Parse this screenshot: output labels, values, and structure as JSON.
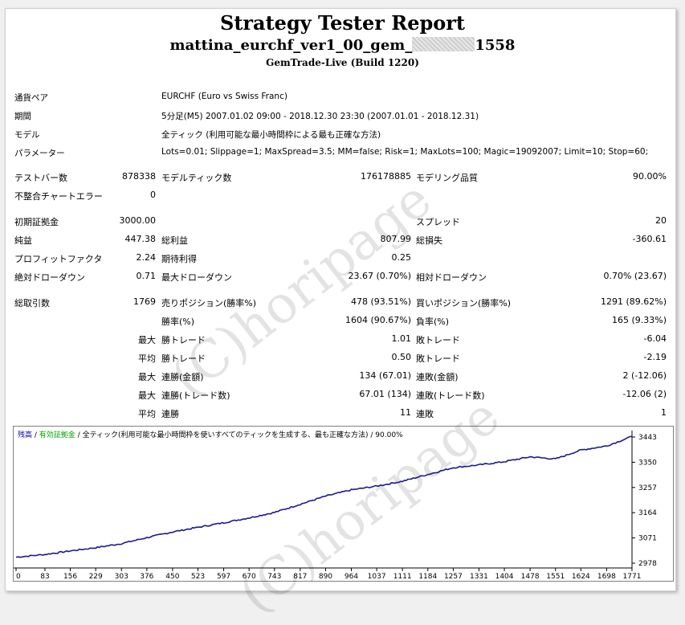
{
  "report": {
    "title": "Strategy Tester Report",
    "ea_prefix": "mattina_eurchf_ver1_00_gem_",
    "ea_suffix": "1558",
    "build": "GemTrade-Live (Build 1220)"
  },
  "info": [
    {
      "label": "通貨ペア",
      "value": "EURCHF (Euro vs Swiss Franc)"
    },
    {
      "label": "期間",
      "value": "5分足(M5) 2007.01.02 09:00 - 2018.12.30 23:30 (2007.01.01 - 2018.12.31)"
    },
    {
      "label": "モデル",
      "value": "全ティック (利用可能な最小時間枠による最も正確な方法)"
    },
    {
      "label": "パラメーター",
      "value": "Lots=0.01; Slippage=1; MaxSpread=3.5; MM=false; Risk=1; MaxLots=100; Magic=19092007; Limit=10; Stop=60;"
    }
  ],
  "stats": {
    "bars_label": "テストバー数",
    "bars": "878338",
    "ticks_label": "モデルティック数",
    "ticks": "176178885",
    "quality_label": "モデリング品質",
    "quality": "90.00%",
    "mismatch_label": "不整合チャートエラー",
    "mismatch": "0",
    "deposit_label": "初期証拠金",
    "deposit": "3000.00",
    "spread_label": "スプレッド",
    "spread": "20",
    "net_label": "純益",
    "net": "447.38",
    "gross_profit_label": "総利益",
    "gross_profit": "807.99",
    "gross_loss_label": "総損失",
    "gross_loss": "-360.61",
    "pf_label": "プロフィットファクタ",
    "pf": "2.24",
    "expected_label": "期待利得",
    "expected": "0.25",
    "abs_dd_label": "絶対ドローダウン",
    "abs_dd": "0.71",
    "max_dd_label": "最大ドローダウン",
    "max_dd": "23.67 (0.70%)",
    "rel_dd_label": "相対ドローダウン",
    "rel_dd": "0.70% (23.67)",
    "total_trades_label": "総取引数",
    "total_trades": "1769",
    "short_label": "売りポジション(勝率%)",
    "short": "478 (93.51%)",
    "long_label": "買いポジション(勝率%)",
    "long": "1291 (89.62%)",
    "win_rate_label": "勝率(%)",
    "win_rate": "1604 (90.67%)",
    "loss_rate_label": "負率(%)",
    "loss_rate": "165 (9.33%)",
    "max_word": "最大",
    "avg_word": "平均",
    "win_trade_label": "勝トレード",
    "lose_trade_label": "敗トレード",
    "largest_win": "1.01",
    "largest_loss": "-6.04",
    "avg_win": "0.50",
    "avg_loss": "-2.19",
    "consec_win_money_label": "連勝(金額)",
    "consec_win_money": "134 (67.01)",
    "consec_loss_money_label": "連敗(金額)",
    "consec_loss_money": "2 (-12.06)",
    "consec_win_count_label": "連勝(トレード数)",
    "consec_win_count": "67.01 (134)",
    "consec_loss_count_label": "連敗(トレード数)",
    "consec_loss_count": "-12.06 (2)",
    "avg_consec_win_label": "連勝",
    "avg_consec_win": "11",
    "avg_consec_loss_label": "連敗",
    "avg_consec_loss": "1"
  },
  "watermark": "(C)horipage",
  "chart_legend": {
    "balance": "残高",
    "sep1": " / ",
    "equity": "有効証拠金",
    "sep2": " / ",
    "model": "全ティック(利用可能な最小時間枠を使いすべてのティックを生成する、最も正確な方法)",
    "sep3": " / ",
    "quality": "90.00%"
  },
  "chart_data": {
    "type": "line",
    "x_ticks": [
      "0",
      "83",
      "156",
      "229",
      "303",
      "376",
      "450",
      "523",
      "597",
      "670",
      "743",
      "817",
      "890",
      "964",
      "1037",
      "1111",
      "1184",
      "1257",
      "1331",
      "1404",
      "1478",
      "1551",
      "1624",
      "1698",
      "1771"
    ],
    "y_ticks": [
      "3443",
      "3350",
      "3257",
      "3164",
      "3071",
      "2978"
    ],
    "ylim": [
      2978,
      3443
    ],
    "xlim": [
      0,
      1771
    ],
    "series": [
      {
        "name": "残高",
        "color": "#1a1a8c",
        "points": [
          [
            0,
            3000
          ],
          [
            83,
            3010
          ],
          [
            156,
            3023
          ],
          [
            229,
            3035
          ],
          [
            303,
            3050
          ],
          [
            376,
            3072
          ],
          [
            450,
            3093
          ],
          [
            523,
            3110
          ],
          [
            597,
            3127
          ],
          [
            670,
            3145
          ],
          [
            743,
            3165
          ],
          [
            817,
            3195
          ],
          [
            890,
            3225
          ],
          [
            964,
            3248
          ],
          [
            1037,
            3262
          ],
          [
            1111,
            3280
          ],
          [
            1184,
            3305
          ],
          [
            1257,
            3330
          ],
          [
            1331,
            3340
          ],
          [
            1404,
            3352
          ],
          [
            1478,
            3370
          ],
          [
            1551,
            3362
          ],
          [
            1624,
            3395
          ],
          [
            1698,
            3410
          ],
          [
            1771,
            3445
          ]
        ]
      }
    ]
  }
}
